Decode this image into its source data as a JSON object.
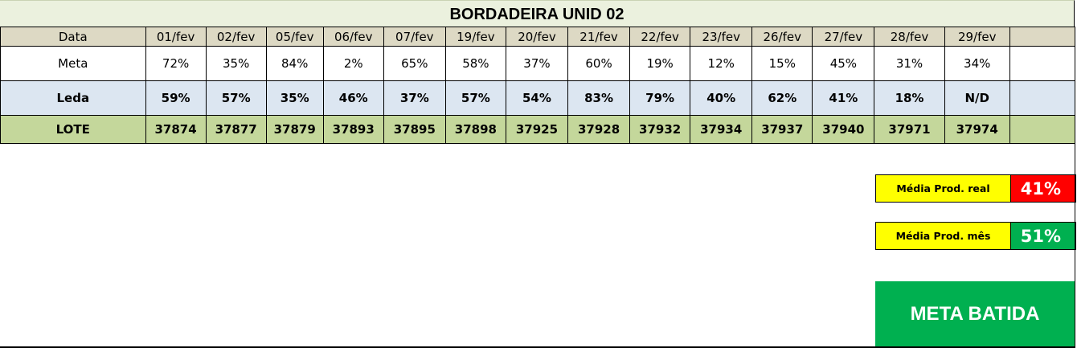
{
  "title": "BORDADEIRA UNID 02",
  "rows": {
    "data": {
      "label": "Data",
      "cells": [
        "01/fev",
        "02/fev",
        "05/fev",
        "06/fev",
        "07/fev",
        "19/fev",
        "20/fev",
        "21/fev",
        "22/fev",
        "23/fev",
        "26/fev",
        "27/fev",
        "28/fev",
        "29/fev"
      ]
    },
    "meta": {
      "label": "Meta",
      "cells": [
        "72%",
        "35%",
        "84%",
        "2%",
        "65%",
        "58%",
        "37%",
        "60%",
        "19%",
        "12%",
        "15%",
        "45%",
        "31%",
        "34%"
      ]
    },
    "leda": {
      "label": "Leda",
      "cells": [
        "59%",
        "57%",
        "35%",
        "46%",
        "37%",
        "57%",
        "54%",
        "83%",
        "79%",
        "40%",
        "62%",
        "41%",
        "18%",
        "N/D"
      ]
    },
    "lote": {
      "label": "LOTE",
      "cells": [
        "37874",
        "37877",
        "37879",
        "37893",
        "37895",
        "37898",
        "37925",
        "37928",
        "37932",
        "37934",
        "37937",
        "37940",
        "37971",
        "37974"
      ]
    }
  },
  "summary": {
    "real": {
      "label": "Média Prod. real",
      "value": "41%",
      "color": "#ff0000"
    },
    "mes": {
      "label": "Média Prod. mês",
      "value": "51%",
      "color": "#00b050"
    }
  },
  "status": {
    "text": "META BATIDA",
    "color": "#00b050"
  },
  "colors": {
    "title_bg": "#ebf1de",
    "header_bg": "#ddd9c4",
    "leda_bg": "#dce6f1",
    "lote_bg": "#c4d79b",
    "label_bg": "#ffff00"
  }
}
